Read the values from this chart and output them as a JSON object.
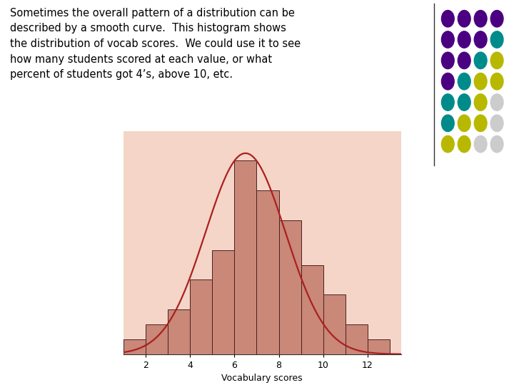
{
  "hist_bg_color": "#f5d5c8",
  "bar_color": "#c98878",
  "bar_edge_color": "#4a2020",
  "curve_color": "#aa2020",
  "xlabel": "Vocabulary scores",
  "bar_centers": [
    1.5,
    2.5,
    3.5,
    4.5,
    5.5,
    6.5,
    7.5,
    8.5,
    9.5,
    10.5,
    11.5,
    12.5
  ],
  "bar_heights": [
    1,
    2,
    3,
    5,
    7,
    13,
    11,
    9,
    6,
    4,
    2,
    1
  ],
  "xticks": [
    2,
    4,
    6,
    8,
    10,
    12
  ],
  "curve_mean": 6.5,
  "curve_std": 1.8,
  "curve_peak": 13.5,
  "page_bg": "#ffffff",
  "text_color": "#000000",
  "ylim": [
    0,
    15
  ],
  "xlim": [
    1,
    13.5
  ],
  "dot_colors_grid": [
    [
      "#4b0082",
      "#4b0082",
      "#4b0082",
      "#4b0082"
    ],
    [
      "#4b0082",
      "#4b0082",
      "#4b0082",
      "#008b8b"
    ],
    [
      "#4b0082",
      "#4b0082",
      "#008b8b",
      "#b8b800"
    ],
    [
      "#4b0082",
      "#008b8b",
      "#b8b800",
      "#b8b800"
    ],
    [
      "#008b8b",
      "#008b8b",
      "#b8b800",
      "#cccccc"
    ],
    [
      "#008b8b",
      "#b8b800",
      "#b8b800",
      "#cccccc"
    ],
    [
      "#b8b800",
      "#b8b800",
      "#cccccc",
      "#cccccc"
    ]
  ]
}
